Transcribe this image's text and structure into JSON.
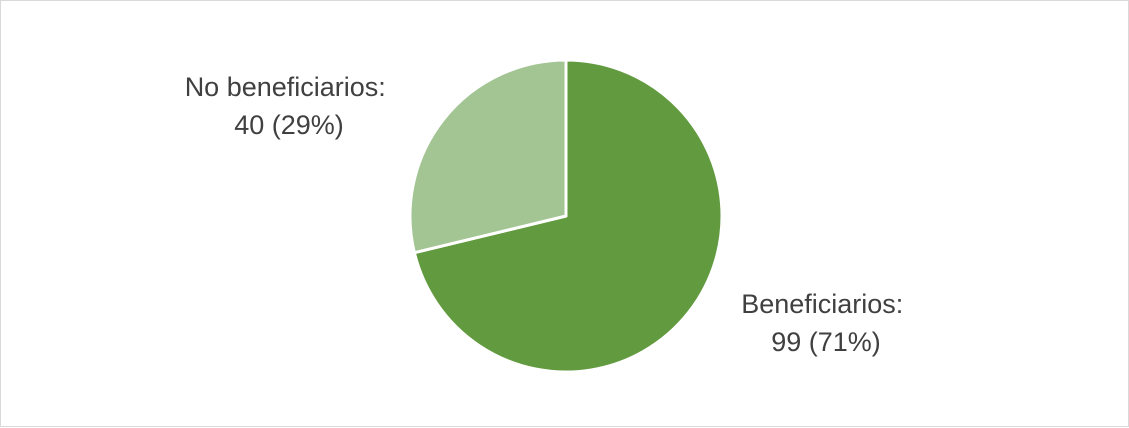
{
  "chart_data": {
    "type": "pie",
    "title": "",
    "slices": [
      {
        "name": "Beneficiarios",
        "value": 99,
        "percent": 71,
        "label_line1": "Beneficiarios:",
        "label_line2": "99 (71%)",
        "color": "#629a3f"
      },
      {
        "name": "No beneficiarios",
        "value": 40,
        "percent": 29,
        "label_line1": "No beneficiarios:",
        "label_line2": "40 (29%)",
        "color": "#a3c594"
      }
    ],
    "start_angle_deg": 0,
    "direction": "clockwise",
    "legend": "none",
    "slice_border_color": "#ffffff"
  }
}
